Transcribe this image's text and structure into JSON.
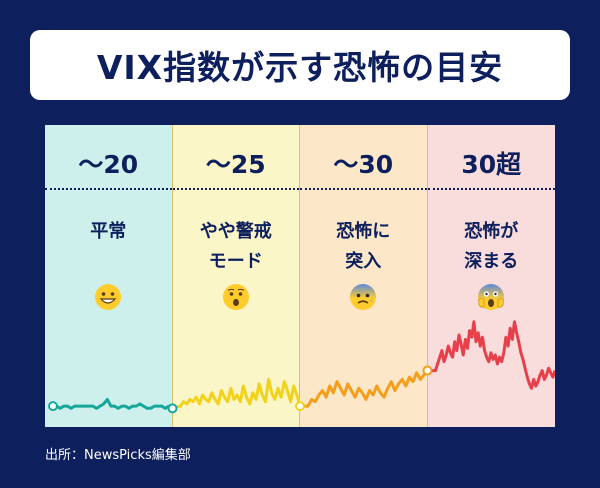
{
  "title": "VIX指数が示す恐怖の目安",
  "source": "出所：NewsPicks編集部",
  "chart_data": {
    "type": "line",
    "title": "VIX指数が示す恐怖の目安",
    "series_note_colors": [
      "#16a79a",
      "#f2d21c",
      "#f59e1b",
      "#e8404b"
    ],
    "zones": [
      {
        "range": "〜20",
        "label": "平常",
        "label_lines": [
          "平常"
        ],
        "bg": "#cdf0ec",
        "line_color": "#16a79a",
        "emoji": "grinning-face"
      },
      {
        "range": "〜25",
        "label": "やや警戒モード",
        "label_lines": [
          "やや警戒",
          "モード"
        ],
        "bg": "#fbf6c8",
        "line_color": "#f2d21c",
        "emoji": "hushed-face"
      },
      {
        "range": "〜30",
        "label": "恐怖に突入",
        "label_lines": [
          "恐怖に",
          "突入"
        ],
        "bg": "#fce8c8",
        "line_color": "#f59e1b",
        "emoji": "anxious-face"
      },
      {
        "range": "30超",
        "label": "恐怖が深まる",
        "label_lines": [
          "恐怖が",
          "深まる"
        ],
        "bg": "#f9dcdc",
        "line_color": "#e8404b",
        "emoji": "screaming-face"
      }
    ],
    "ylim": [
      0,
      80
    ],
    "zone_values": [
      [
        14,
        14,
        13,
        14,
        14,
        13,
        14,
        14,
        14,
        14,
        14,
        14,
        13,
        14,
        15,
        17,
        14,
        14,
        13,
        14,
        14,
        13,
        14,
        14,
        15,
        14,
        13,
        13,
        14,
        14,
        14,
        13,
        14,
        13
      ],
      [
        14,
        16,
        15,
        17,
        16,
        18,
        15,
        19,
        17,
        16,
        20,
        17,
        15,
        21,
        18,
        16,
        22,
        17,
        19,
        16,
        23,
        18,
        15,
        20,
        17,
        24,
        19,
        16,
        26,
        20,
        17,
        22,
        18,
        25,
        21,
        16,
        23,
        19,
        14
      ],
      [
        14,
        17,
        16,
        19,
        21,
        18,
        23,
        20,
        25,
        22,
        19,
        24,
        21,
        18,
        22,
        20,
        17,
        21,
        19,
        23,
        20,
        18,
        22,
        25,
        21,
        24,
        26,
        23,
        27,
        25,
        29,
        26,
        28,
        30
      ],
      [
        30,
        33,
        36,
        39,
        34,
        37,
        41,
        38,
        36,
        43,
        39,
        46,
        42,
        37,
        44,
        40,
        48,
        45,
        52,
        43,
        47,
        41,
        45,
        39,
        36,
        34,
        38,
        35,
        37,
        33,
        36,
        34,
        38,
        45,
        41,
        49,
        44,
        52,
        47,
        43,
        38,
        35,
        31,
        27,
        24,
        22,
        26,
        23,
        25,
        28,
        30,
        26,
        28,
        31,
        29,
        27,
        30
      ]
    ]
  }
}
